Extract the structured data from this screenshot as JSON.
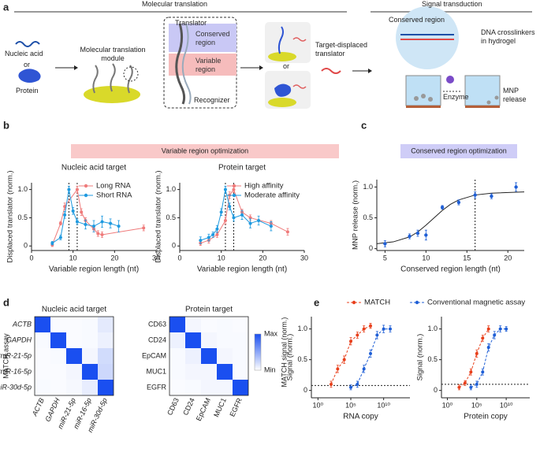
{
  "panel_labels": [
    "a",
    "b",
    "c",
    "d",
    "e"
  ],
  "diagram": {
    "section_1": "Molecular translation",
    "section_2": "Signal transduction",
    "input_1": "Nucleic acid",
    "or_1": "or",
    "input_2": "Protein",
    "module": "Molecular translation module",
    "translator": "Translator",
    "conserved": "Conserved region",
    "variable": "Variable region",
    "recognizer": "Recognizer",
    "or_2": "or",
    "displaced": "Target-displaced translator",
    "conserved_2": "Conserved region",
    "crosslinkers": "DNA crosslinkers in hydrogel",
    "enzyme": "Enzyme",
    "release": "MNP release"
  },
  "headers": {
    "b": "Variable region optimization",
    "c": "Conserved region optimization"
  },
  "chart_data": [
    {
      "type": "line",
      "title": "Nucleic acid target",
      "x_label": "Variable region length (nt)",
      "y_label": "Displaced translator (norm.)",
      "xlim": [
        0,
        30
      ],
      "xticks": [
        0,
        10,
        20,
        30
      ],
      "ylim": [
        -0.08,
        1.12
      ],
      "yticks": [
        0,
        0.5,
        {
          "value": 1,
          "label": "1.0"
        }
      ],
      "vlines": [
        9,
        11
      ],
      "series": [
        {
          "name": "Long RNA",
          "color": "#ef7b7b",
          "x": [
            5,
            7,
            8,
            11,
            12,
            13,
            15,
            16,
            17,
            27
          ],
          "values": [
            0.02,
            0.4,
            0.7,
            1.0,
            0.6,
            0.45,
            0.3,
            0.22,
            0.2,
            0.32
          ],
          "errors": [
            0.03,
            0.03,
            0.06,
            0.06,
            0.06,
            0.05,
            0.05,
            0.05,
            0.05,
            0.05
          ]
        },
        {
          "name": "Short RNA",
          "color": "#1f9ae0",
          "x": [
            5,
            7,
            8,
            9,
            10,
            11,
            13,
            15,
            17,
            19,
            21
          ],
          "values": [
            0.05,
            0.15,
            0.55,
            1.0,
            0.62,
            0.43,
            0.38,
            0.35,
            0.43,
            0.4,
            0.35
          ],
          "errors": [
            0.03,
            0.04,
            0.06,
            0.06,
            0.06,
            0.05,
            0.08,
            0.1,
            0.1,
            0.08,
            0.1
          ]
        }
      ]
    },
    {
      "type": "line",
      "title": "Protein target",
      "x_label": "Variable region length (nt)",
      "y_label": "Displaced translator (norm.)",
      "xlim": [
        0,
        30
      ],
      "xticks": [
        0,
        10,
        20,
        30
      ],
      "ylim": [
        -0.08,
        1.12
      ],
      "yticks": [
        0,
        0.5,
        {
          "value": 1,
          "label": "1.0"
        }
      ],
      "vlines": [
        11,
        13
      ],
      "series": [
        {
          "name": "High affinity",
          "color": "#ef7b7b",
          "x": [
            5,
            7,
            9,
            11,
            12,
            13,
            15,
            17,
            22,
            26
          ],
          "values": [
            0.05,
            0.1,
            0.2,
            0.45,
            0.9,
            1.0,
            0.6,
            0.5,
            0.4,
            0.25
          ],
          "errors": [
            0.04,
            0.05,
            0.05,
            0.06,
            0.06,
            0.05,
            0.05,
            0.05,
            0.05,
            0.06
          ]
        },
        {
          "name": "Moderate affinity",
          "color": "#1f9ae0",
          "x": [
            5,
            7,
            8,
            9,
            10,
            11,
            12,
            13,
            15,
            17,
            19,
            22
          ],
          "values": [
            0.1,
            0.15,
            0.2,
            0.3,
            0.6,
            1.0,
            0.7,
            0.5,
            0.55,
            0.4,
            0.45,
            0.35
          ],
          "errors": [
            0.06,
            0.06,
            0.05,
            0.06,
            0.06,
            0.06,
            0.06,
            0.06,
            0.08,
            0.08,
            0.08,
            0.08
          ]
        }
      ]
    },
    {
      "type": "scatter",
      "x_label": "Conserved region length (nt)",
      "y_label": "MNP release (norm.)",
      "color": "#1f5fd6",
      "xlim": [
        4,
        22
      ],
      "xticks": [
        5,
        10,
        15,
        20
      ],
      "ylim": [
        -0.03,
        1.12
      ],
      "yticks": [
        0,
        0.5,
        {
          "value": 1,
          "label": "1.0"
        }
      ],
      "vlines": [
        16
      ],
      "x": [
        5,
        8,
        9,
        10,
        12,
        14,
        16,
        18,
        21
      ],
      "values": [
        0.08,
        0.2,
        0.25,
        0.22,
        0.67,
        0.75,
        0.87,
        0.85,
        1.0
      ],
      "errors": [
        0.05,
        0.04,
        0.05,
        0.08,
        0.03,
        0.04,
        0.05,
        0.04,
        0.07
      ],
      "fit": {
        "x": [
          4,
          6,
          8,
          9,
          10,
          11,
          12,
          13,
          14,
          16,
          18,
          22
        ],
        "y": [
          0.08,
          0.11,
          0.19,
          0.27,
          0.38,
          0.5,
          0.62,
          0.72,
          0.79,
          0.87,
          0.9,
          0.92
        ]
      }
    },
    {
      "type": "heatmap",
      "title": "Nucleic acid target",
      "y_label": "MATCH assay",
      "italic": true,
      "color": "#1a4ff0",
      "categories": [
        "ACTB",
        "GAPDH",
        "miR-21-5p",
        "miR-16-5p",
        "miR-30d-5p"
      ],
      "values": [
        [
          1,
          0.02,
          0.02,
          0.03,
          0.12
        ],
        [
          0.03,
          1,
          0.02,
          0.03,
          0.08
        ],
        [
          0.02,
          0.03,
          1,
          0.05,
          0.2
        ],
        [
          0.02,
          0.02,
          0.05,
          1,
          0.22
        ],
        [
          0.03,
          0.02,
          0.04,
          0.1,
          1
        ]
      ]
    },
    {
      "type": "heatmap",
      "title": "Protein target",
      "italic": false,
      "color": "#1a4ff0",
      "categories": [
        "CD63",
        "CD24",
        "EpCAM",
        "MUC1",
        "EGFR"
      ],
      "values": [
        [
          1,
          0.05,
          0.02,
          0.03,
          0.02
        ],
        [
          0.08,
          1,
          0.05,
          0.03,
          0.03
        ],
        [
          0.03,
          0.08,
          1,
          0.05,
          0.03
        ],
        [
          0.03,
          0.05,
          0.05,
          1,
          0.03
        ],
        [
          0.02,
          0.03,
          0.05,
          0.05,
          1
        ]
      ],
      "colorbar": {
        "label": "MATCH signal (norm.)",
        "max_label": "Max",
        "min_label": "Min"
      }
    },
    {
      "type": "line",
      "log_x": true,
      "dashed": true,
      "x_label": "RNA copy",
      "y_label": "Signal (norm.)",
      "xlim": [
        0.1,
        100000000000000
      ],
      "xticks": [
        {
          "value": 1,
          "label": "10⁰"
        },
        {
          "value": 100000,
          "label": "10⁵"
        },
        {
          "value": 10000000000,
          "label": "10¹⁰"
        }
      ],
      "ylim": [
        -0.12,
        1.2
      ],
      "yticks": [
        0,
        0.5,
        {
          "value": 1,
          "label": "1.0"
        }
      ],
      "hline": 0.08,
      "series": [
        {
          "name": "MATCH",
          "color": "#e8401c",
          "x": [
            100,
            1000,
            10000,
            100000,
            1000000,
            10000000,
            100000000
          ],
          "values": [
            0.1,
            0.35,
            0.5,
            0.8,
            0.9,
            1.0,
            1.05
          ],
          "errors": [
            0.05,
            0.06,
            0.06,
            0.06,
            0.05,
            0.05,
            0.04
          ]
        },
        {
          "name": "Conventional magnetic assay",
          "color": "#1f5fd6",
          "x": [
            100000,
            1000000,
            10000000,
            100000000,
            1000000000,
            10000000000,
            100000000000
          ],
          "values": [
            0.05,
            0.1,
            0.35,
            0.6,
            0.9,
            1.0,
            1.0
          ],
          "errors": [
            0.04,
            0.05,
            0.06,
            0.06,
            0.06,
            0.06,
            0.05
          ]
        }
      ]
    },
    {
      "type": "line",
      "log_x": true,
      "dashed": true,
      "x_label": "Protein copy",
      "y_label": "Signal (norm.)",
      "xlim": [
        0.1,
        100000000000000
      ],
      "xticks": [
        {
          "value": 1,
          "label": "10⁰"
        },
        {
          "value": 100000,
          "label": "10⁵"
        },
        {
          "value": 10000000000,
          "label": "10¹⁰"
        }
      ],
      "ylim": [
        -0.12,
        1.2
      ],
      "yticks": [
        0,
        0.5,
        {
          "value": 1,
          "label": "1.0"
        }
      ],
      "hline": 0.1,
      "series": [
        {
          "color": "#e8401c",
          "x": [
            100,
            1000,
            10000,
            100000,
            1000000,
            10000000
          ],
          "values": [
            0.05,
            0.12,
            0.3,
            0.6,
            0.85,
            1.0
          ],
          "errors": [
            0.04,
            0.04,
            0.05,
            0.06,
            0.05,
            0.05
          ]
        },
        {
          "color": "#1f5fd6",
          "x": [
            10000,
            100000,
            1000000,
            10000000,
            100000000,
            1000000000,
            10000000000
          ],
          "values": [
            0.05,
            0.1,
            0.3,
            0.7,
            0.9,
            1.0,
            1.0
          ],
          "errors": [
            0.04,
            0.05,
            0.05,
            0.06,
            0.06,
            0.05,
            0.04
          ]
        }
      ]
    }
  ]
}
